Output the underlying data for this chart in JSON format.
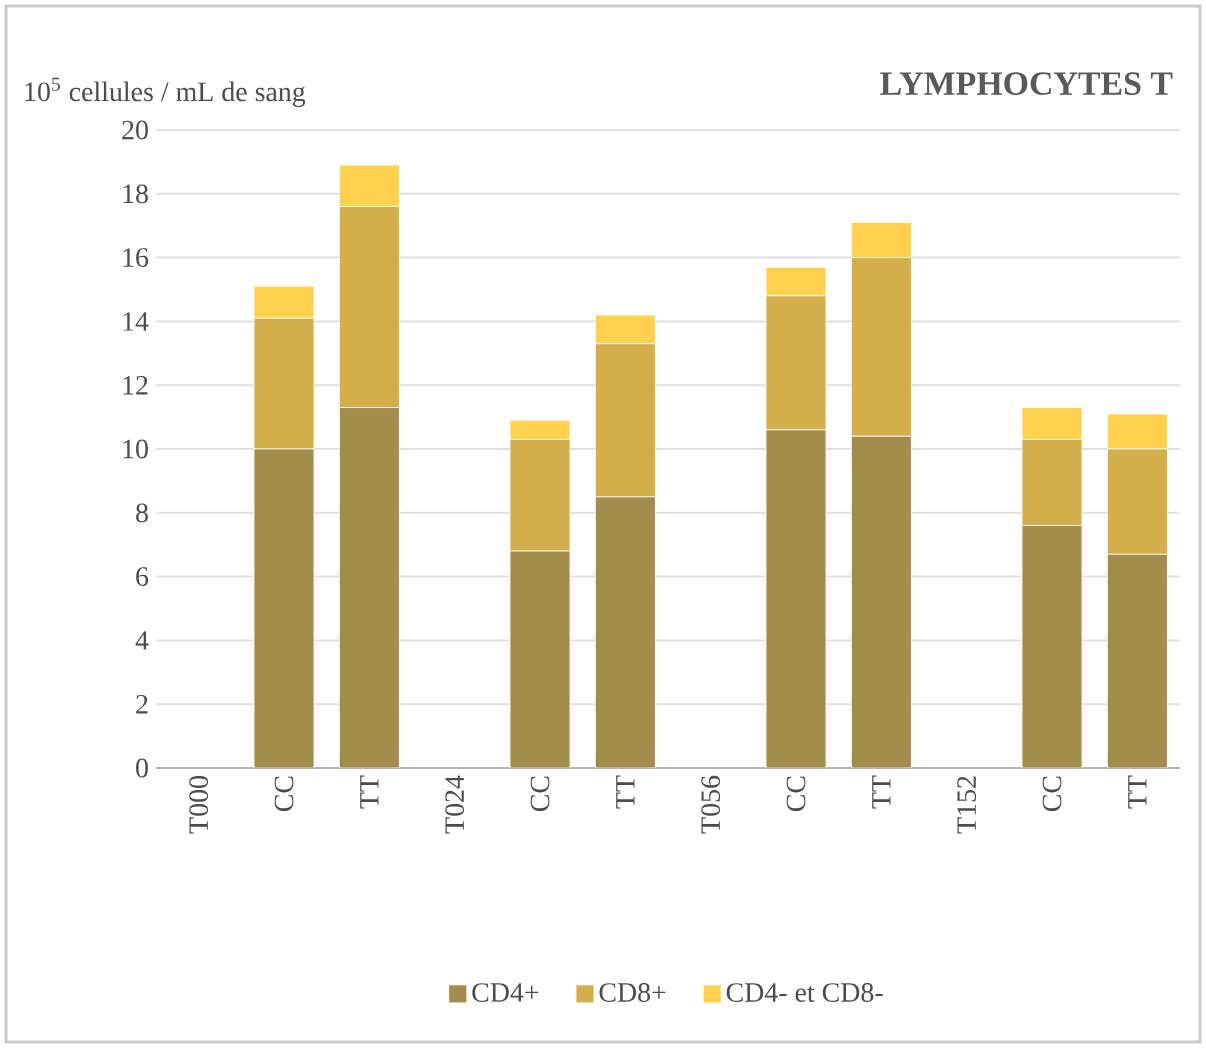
{
  "chart_data": {
    "type": "bar",
    "title": "LYMPHOCYTES T",
    "ylabel": "10$^{5}$ cellules / mL de sang",
    "categories": [
      "T000",
      "CC",
      "TT",
      "T024",
      "CC",
      "TT",
      "T056",
      "CC",
      "TT",
      "T152",
      "CC",
      "TT"
    ],
    "stacked": true,
    "series": [
      {
        "name": "CD4+",
        "color": "#a38d4c",
        "values": [
          null,
          10.0,
          11.3,
          null,
          6.8,
          8.5,
          null,
          10.6,
          10.4,
          null,
          7.6,
          6.7
        ]
      },
      {
        "name": "CD8+",
        "color": "#d4ae4a",
        "values": [
          null,
          4.1,
          6.3,
          null,
          3.5,
          4.8,
          null,
          4.2,
          5.6,
          null,
          2.7,
          3.3
        ]
      },
      {
        "name": "CD4- et CD8-",
        "color": "#fed14e",
        "values": [
          null,
          1.0,
          1.3,
          null,
          0.6,
          0.9,
          null,
          0.9,
          1.1,
          null,
          1.0,
          1.1
        ]
      }
    ],
    "ylim": [
      0,
      20
    ],
    "yticks": [
      0,
      2,
      4,
      6,
      8,
      10,
      12,
      14,
      16,
      18,
      20
    ],
    "grid": "y",
    "legend": "bottom"
  }
}
